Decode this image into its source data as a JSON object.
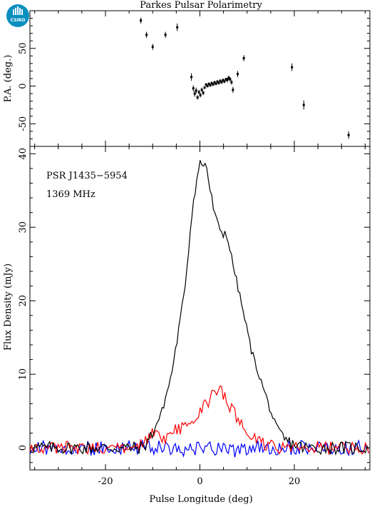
{
  "chart_data": {
    "type": "line",
    "title": "Parkes Pulsar Polarimetry",
    "xlabel": "Pulse Longitude (deg)",
    "xlim": [
      -36,
      36
    ],
    "x_ticks": [
      "-20",
      "0",
      "20"
    ],
    "x_tick_values": [
      -20,
      0,
      20
    ],
    "logo_text": "CSIRO",
    "panels": [
      {
        "name": "pa",
        "ylabel": "P.A. (deg.)",
        "ylim": [
          -80,
          100
        ],
        "y_ticks": [
          "50",
          "0",
          "-50"
        ],
        "y_tick_values": [
          50,
          0,
          -50
        ],
        "points": [
          {
            "x": -12.5,
            "y": 87,
            "err": 4
          },
          {
            "x": -11.3,
            "y": 68,
            "err": 4
          },
          {
            "x": -10.0,
            "y": 52,
            "err": 4
          },
          {
            "x": -7.3,
            "y": 68,
            "err": 4
          },
          {
            "x": -4.8,
            "y": 78,
            "err": 5
          },
          {
            "x": -1.8,
            "y": 12,
            "err": 5
          },
          {
            "x": -1.4,
            "y": -3,
            "err": 4
          },
          {
            "x": -1.1,
            "y": -10,
            "err": 4
          },
          {
            "x": -0.8,
            "y": -6,
            "err": 4
          },
          {
            "x": -0.5,
            "y": -15,
            "err": 3
          },
          {
            "x": -0.2,
            "y": -8,
            "err": 3
          },
          {
            "x": 0.1,
            "y": -12,
            "err": 3
          },
          {
            "x": 0.4,
            "y": -5,
            "err": 3
          },
          {
            "x": 0.7,
            "y": -9,
            "err": 3
          },
          {
            "x": 1.0,
            "y": -2,
            "err": 2
          },
          {
            "x": 1.3,
            "y": 2,
            "err": 2
          },
          {
            "x": 1.6,
            "y": 0,
            "err": 2
          },
          {
            "x": 1.9,
            "y": 3,
            "err": 2
          },
          {
            "x": 2.2,
            "y": 1,
            "err": 2
          },
          {
            "x": 2.5,
            "y": 4,
            "err": 2
          },
          {
            "x": 2.8,
            "y": 2,
            "err": 2
          },
          {
            "x": 3.1,
            "y": 5,
            "err": 2
          },
          {
            "x": 3.4,
            "y": 3,
            "err": 2
          },
          {
            "x": 3.7,
            "y": 6,
            "err": 2
          },
          {
            "x": 4.0,
            "y": 4,
            "err": 2
          },
          {
            "x": 4.3,
            "y": 7,
            "err": 2
          },
          {
            "x": 4.6,
            "y": 5,
            "err": 2
          },
          {
            "x": 4.9,
            "y": 8,
            "err": 2
          },
          {
            "x": 5.2,
            "y": 6,
            "err": 2
          },
          {
            "x": 5.5,
            "y": 9,
            "err": 2
          },
          {
            "x": 5.8,
            "y": 8,
            "err": 3
          },
          {
            "x": 6.1,
            "y": 11,
            "err": 3
          },
          {
            "x": 6.4,
            "y": 9,
            "err": 3
          },
          {
            "x": 6.7,
            "y": 5,
            "err": 3
          },
          {
            "x": 7.0,
            "y": -5,
            "err": 4
          },
          {
            "x": 8.0,
            "y": 16,
            "err": 4
          },
          {
            "x": 9.3,
            "y": 37,
            "err": 4
          },
          {
            "x": 19.5,
            "y": 25,
            "err": 5
          },
          {
            "x": 22.0,
            "y": -25,
            "err": 6
          },
          {
            "x": 31.5,
            "y": -65,
            "err": 5
          }
        ]
      },
      {
        "name": "flux",
        "ylabel": "Flux Density (mJy)",
        "ylim": [
          -3,
          41
        ],
        "y_ticks": [
          "40",
          "30",
          "20",
          "10",
          "0"
        ],
        "y_tick_values": [
          40,
          30,
          20,
          10,
          0
        ],
        "annotations": [
          "PSR J1435−5954",
          "1369 MHz"
        ],
        "series": [
          {
            "color": "#000000",
            "x": [
              -36,
              -32,
              -28,
              -24,
              -20,
              -16,
              -12,
              -10,
              -8,
              -6,
              -5,
              -4,
              -3,
              -2.5,
              -2,
              -1.5,
              -1,
              -0.5,
              0,
              0.3,
              0.6,
              1,
              1.5,
              2,
              2.5,
              3,
              3.5,
              4,
              4.5,
              5,
              5.5,
              6,
              7,
              8,
              9,
              10,
              11,
              12,
              13,
              14,
              15,
              16,
              18,
              22,
              26,
              30,
              36
            ],
            "y": [
              0,
              0,
              0,
              0,
              0,
              0,
              0,
              2,
              5,
              10,
              14,
              18,
              23,
              26,
              30,
              33,
              35,
              37,
              39,
              38.5,
              38,
              39,
              38,
              35.5,
              34,
              32,
              31,
              30,
              29.5,
              29,
              29.5,
              28,
              25,
              22,
              19,
              16,
              13,
              11,
              9,
              7,
              5,
              3,
              1,
              0,
              0,
              0,
              0
            ]
          },
          {
            "color": "#ff0000",
            "x": [
              -36,
              -24,
              -14,
              -12,
              -11,
              -10,
              -9,
              -8,
              -7,
              -6,
              -5,
              -4,
              -3,
              -2,
              -1,
              0,
              1,
              2,
              3,
              4,
              4.5,
              5,
              6,
              7,
              8,
              9,
              10,
              12,
              16,
              24,
              36
            ],
            "y": [
              0,
              0,
              0,
              0.5,
              1,
              2,
              1.5,
              1,
              1.5,
              2,
              2.5,
              2.5,
              3,
              3.5,
              4,
              5,
              6,
              6.5,
              7.5,
              8.5,
              9,
              7,
              6,
              5,
              4,
              3,
              2,
              1,
              0,
              0,
              0
            ]
          },
          {
            "color": "#0000ff",
            "x": [
              -36,
              -12,
              -8,
              -4,
              0,
              4,
              8,
              12,
              16,
              36
            ],
            "y": [
              0,
              0,
              0,
              -0.5,
              0,
              0,
              -0.5,
              0,
              0,
              0
            ]
          }
        ]
      }
    ]
  }
}
